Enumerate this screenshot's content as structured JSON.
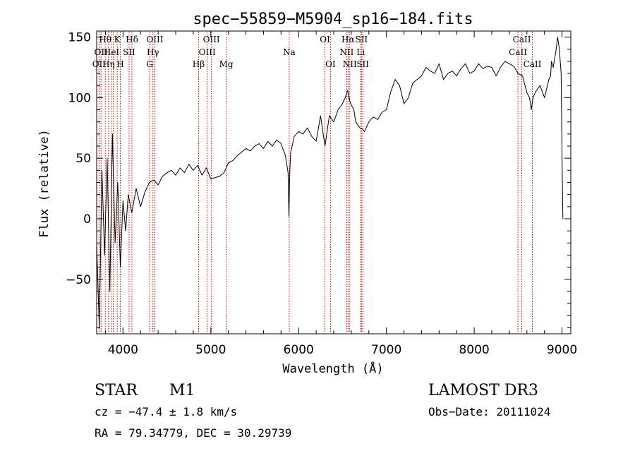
{
  "chart_data": {
    "type": "line",
    "title": "spec−55859−M5904_sp16−184.fits",
    "xlabel": "Wavelength (Å)",
    "ylabel": "Flux (relative)",
    "xlim": [
      3700,
      9100
    ],
    "ylim": [
      -95,
      155
    ],
    "x_ticks": [
      4000,
      5000,
      6000,
      7000,
      8000,
      9000
    ],
    "y_ticks": [
      -50,
      0,
      50,
      100,
      150
    ],
    "y_tick_labels": [
      "−50",
      "0",
      "50",
      "100",
      "150"
    ],
    "series": [
      {
        "name": "spectrum",
        "x": [
          3700,
          3730,
          3760,
          3790,
          3820,
          3850,
          3880,
          3910,
          3940,
          3970,
          4000,
          4030,
          4060,
          4100,
          4150,
          4200,
          4250,
          4300,
          4350,
          4400,
          4450,
          4500,
          4550,
          4600,
          4650,
          4700,
          4750,
          4800,
          4850,
          4900,
          4950,
          5000,
          5050,
          5100,
          5150,
          5200,
          5250,
          5300,
          5350,
          5400,
          5450,
          5500,
          5550,
          5600,
          5650,
          5700,
          5750,
          5800,
          5850,
          5880,
          5890,
          5900,
          5910,
          5920,
          5950,
          6000,
          6050,
          6100,
          6150,
          6200,
          6250,
          6300,
          6350,
          6400,
          6450,
          6500,
          6530,
          6560,
          6580,
          6600,
          6630,
          6650,
          6700,
          6730,
          6750,
          6800,
          6850,
          6900,
          6950,
          7000,
          7050,
          7100,
          7150,
          7200,
          7250,
          7300,
          7350,
          7400,
          7450,
          7500,
          7550,
          7600,
          7650,
          7700,
          7750,
          7800,
          7850,
          7900,
          7950,
          8000,
          8050,
          8100,
          8150,
          8200,
          8250,
          8300,
          8350,
          8400,
          8450,
          8500,
          8550,
          8600,
          8630,
          8650,
          8670,
          8700,
          8750,
          8800,
          8850,
          8870,
          8880,
          8900,
          8930,
          8950,
          8970,
          8990,
          9000,
          9010
        ],
        "y": [
          -20,
          -90,
          40,
          -30,
          50,
          -60,
          70,
          -20,
          30,
          -40,
          15,
          -10,
          20,
          5,
          25,
          10,
          22,
          30,
          32,
          28,
          35,
          38,
          40,
          36,
          42,
          38,
          45,
          40,
          44,
          36,
          42,
          33,
          34,
          35,
          38,
          46,
          48,
          52,
          55,
          58,
          56,
          60,
          62,
          58,
          64,
          60,
          65,
          62,
          52,
          38,
          2,
          40,
          55,
          58,
          68,
          72,
          70,
          75,
          68,
          64,
          85,
          60,
          85,
          80,
          90,
          95,
          100,
          106,
          98,
          94,
          90,
          80,
          75,
          74,
          72,
          80,
          84,
          82,
          88,
          90,
          105,
          115,
          110,
          95,
          100,
          112,
          115,
          118,
          125,
          122,
          120,
          128,
          115,
          120,
          122,
          118,
          124,
          128,
          120,
          122,
          128,
          124,
          126,
          125,
          118,
          125,
          130,
          128,
          126,
          120,
          118,
          104,
          100,
          90,
          100,
          105,
          110,
          100,
          115,
          118,
          130,
          125,
          138,
          150,
          140,
          120,
          50,
          0
        ],
        "color": "#000000"
      }
    ],
    "line_markers": [
      {
        "wavelength": 3727,
        "label": "OII",
        "row": 2
      },
      {
        "wavelength": 3750,
        "label": "OII",
        "row": 1
      },
      {
        "wavelength": 3798,
        "label": "Hθ",
        "row": 0
      },
      {
        "wavelength": 3835,
        "label": "Hη",
        "row": 2
      },
      {
        "wavelength": 3869,
        "label": "HeI",
        "row": 1
      },
      {
        "wavelength": 3889,
        "label": "",
        "row": 0
      },
      {
        "wavelength": 3934,
        "label": "K",
        "row": 0
      },
      {
        "wavelength": 3969,
        "label": "H",
        "row": 2
      },
      {
        "wavelength": 4069,
        "label": "SII",
        "row": 1
      },
      {
        "wavelength": 4102,
        "label": "Hδ",
        "row": 0
      },
      {
        "wavelength": 4304,
        "label": "G",
        "row": 2
      },
      {
        "wavelength": 4341,
        "label": "Hγ",
        "row": 1
      },
      {
        "wavelength": 4363,
        "label": "OIII",
        "row": 0
      },
      {
        "wavelength": 4861,
        "label": "Hβ",
        "row": 2
      },
      {
        "wavelength": 4959,
        "label": "OIII",
        "row": 1
      },
      {
        "wavelength": 5007,
        "label": "OIII",
        "row": 0
      },
      {
        "wavelength": 5175,
        "label": "Mg",
        "row": 2
      },
      {
        "wavelength": 5893,
        "label": "Na",
        "row": 1
      },
      {
        "wavelength": 6300,
        "label": "OI",
        "row": 0
      },
      {
        "wavelength": 6363,
        "label": "OI",
        "row": 2
      },
      {
        "wavelength": 6548,
        "label": "NII",
        "row": 1
      },
      {
        "wavelength": 6563,
        "label": "Hα",
        "row": 0
      },
      {
        "wavelength": 6583,
        "label": "NII",
        "row": 2
      },
      {
        "wavelength": 6707,
        "label": "Li",
        "row": 1
      },
      {
        "wavelength": 6716,
        "label": "SII",
        "row": 0
      },
      {
        "wavelength": 6731,
        "label": "SII",
        "row": 2
      },
      {
        "wavelength": 8498,
        "label": "CaII",
        "row": 1
      },
      {
        "wavelength": 8542,
        "label": "CaII",
        "row": 0
      },
      {
        "wavelength": 8662,
        "label": "CaII",
        "row": 2
      }
    ],
    "marker_color": "#cc0000",
    "grid": false,
    "legend": "none"
  },
  "info": {
    "object_class": "STAR",
    "subclass": "M1",
    "survey": "LAMOST DR3",
    "cz": "cz = −47.4 ± 1.8 km/s",
    "obs_date": "Obs−Date: 20111024",
    "coords": "RA =  79.34779, DEC =  30.29739"
  }
}
